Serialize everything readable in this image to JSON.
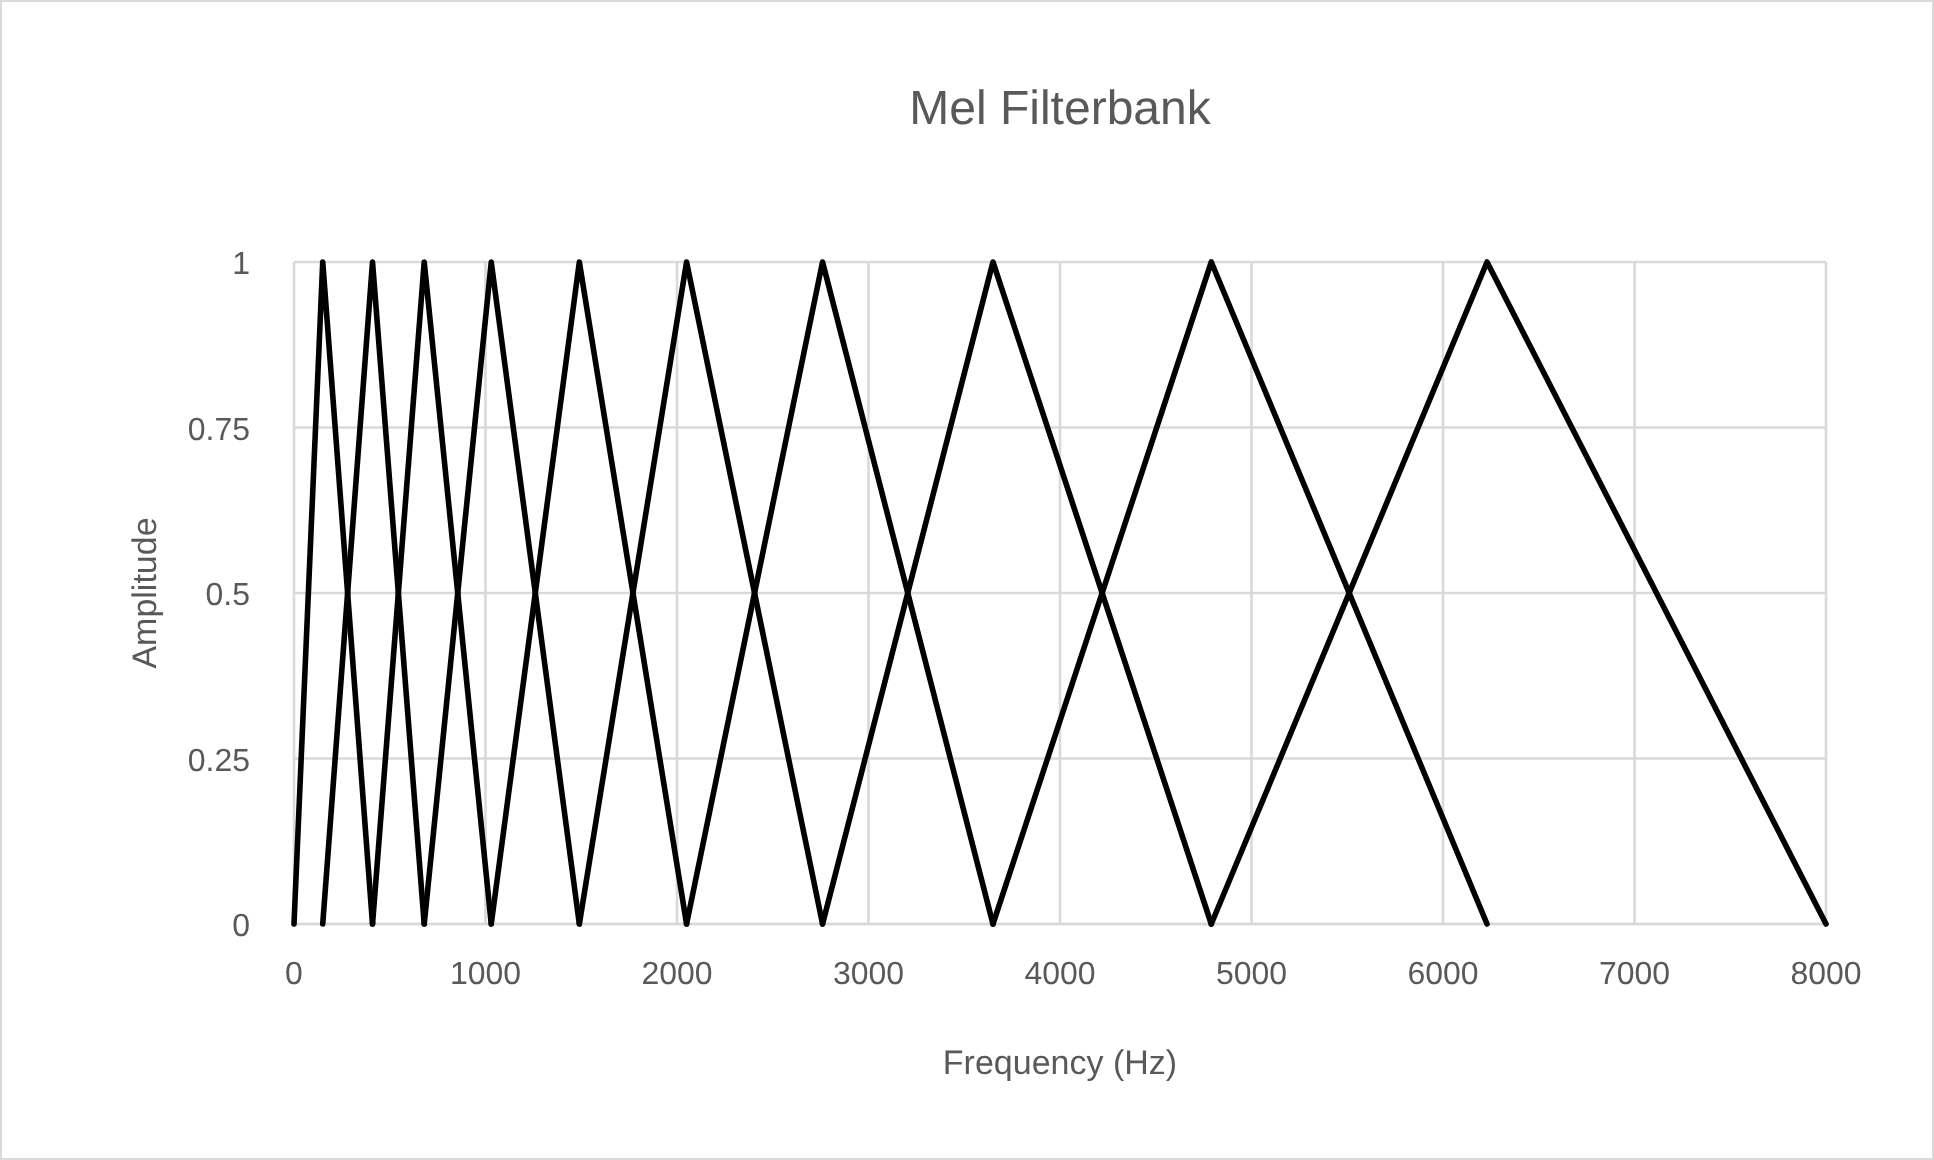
{
  "chart_data": {
    "type": "line",
    "title": "Mel Filterbank",
    "xlabel": "Frequency (Hz)",
    "ylabel": "Amplitude",
    "xlim": [
      0,
      8000
    ],
    "xticks": [
      0,
      1000,
      2000,
      3000,
      4000,
      5000,
      6000,
      7000,
      8000
    ],
    "ylim": [
      0,
      1
    ],
    "yticks": [
      0,
      0.25,
      0.5,
      0.75,
      1
    ],
    "grid": true,
    "marker": "none",
    "line_style": "solid",
    "series": [
      {
        "color": "#000000",
        "x": [
          0,
          150,
          410
        ],
        "values": [
          0,
          1,
          0
        ]
      },
      {
        "color": "#000000",
        "x": [
          150,
          410,
          680
        ],
        "values": [
          0,
          1,
          0
        ]
      },
      {
        "color": "#000000",
        "x": [
          410,
          680,
          1030
        ],
        "values": [
          0,
          1,
          0
        ]
      },
      {
        "color": "#000000",
        "x": [
          680,
          1030,
          1490
        ],
        "values": [
          0,
          1,
          0
        ]
      },
      {
        "color": "#000000",
        "x": [
          1030,
          1490,
          2050
        ],
        "values": [
          0,
          1,
          0
        ]
      },
      {
        "color": "#000000",
        "x": [
          1490,
          2050,
          2760
        ],
        "values": [
          0,
          1,
          0
        ]
      },
      {
        "color": "#000000",
        "x": [
          2050,
          2760,
          3650
        ],
        "values": [
          0,
          1,
          0
        ]
      },
      {
        "color": "#000000",
        "x": [
          2760,
          3650,
          4790
        ],
        "values": [
          0,
          1,
          0
        ]
      },
      {
        "color": "#000000",
        "x": [
          3650,
          4790,
          6230
        ],
        "values": [
          0,
          1,
          0
        ]
      },
      {
        "color": "#000000",
        "x": [
          4790,
          6230,
          8000
        ],
        "values": [
          0,
          1,
          0
        ]
      }
    ]
  }
}
